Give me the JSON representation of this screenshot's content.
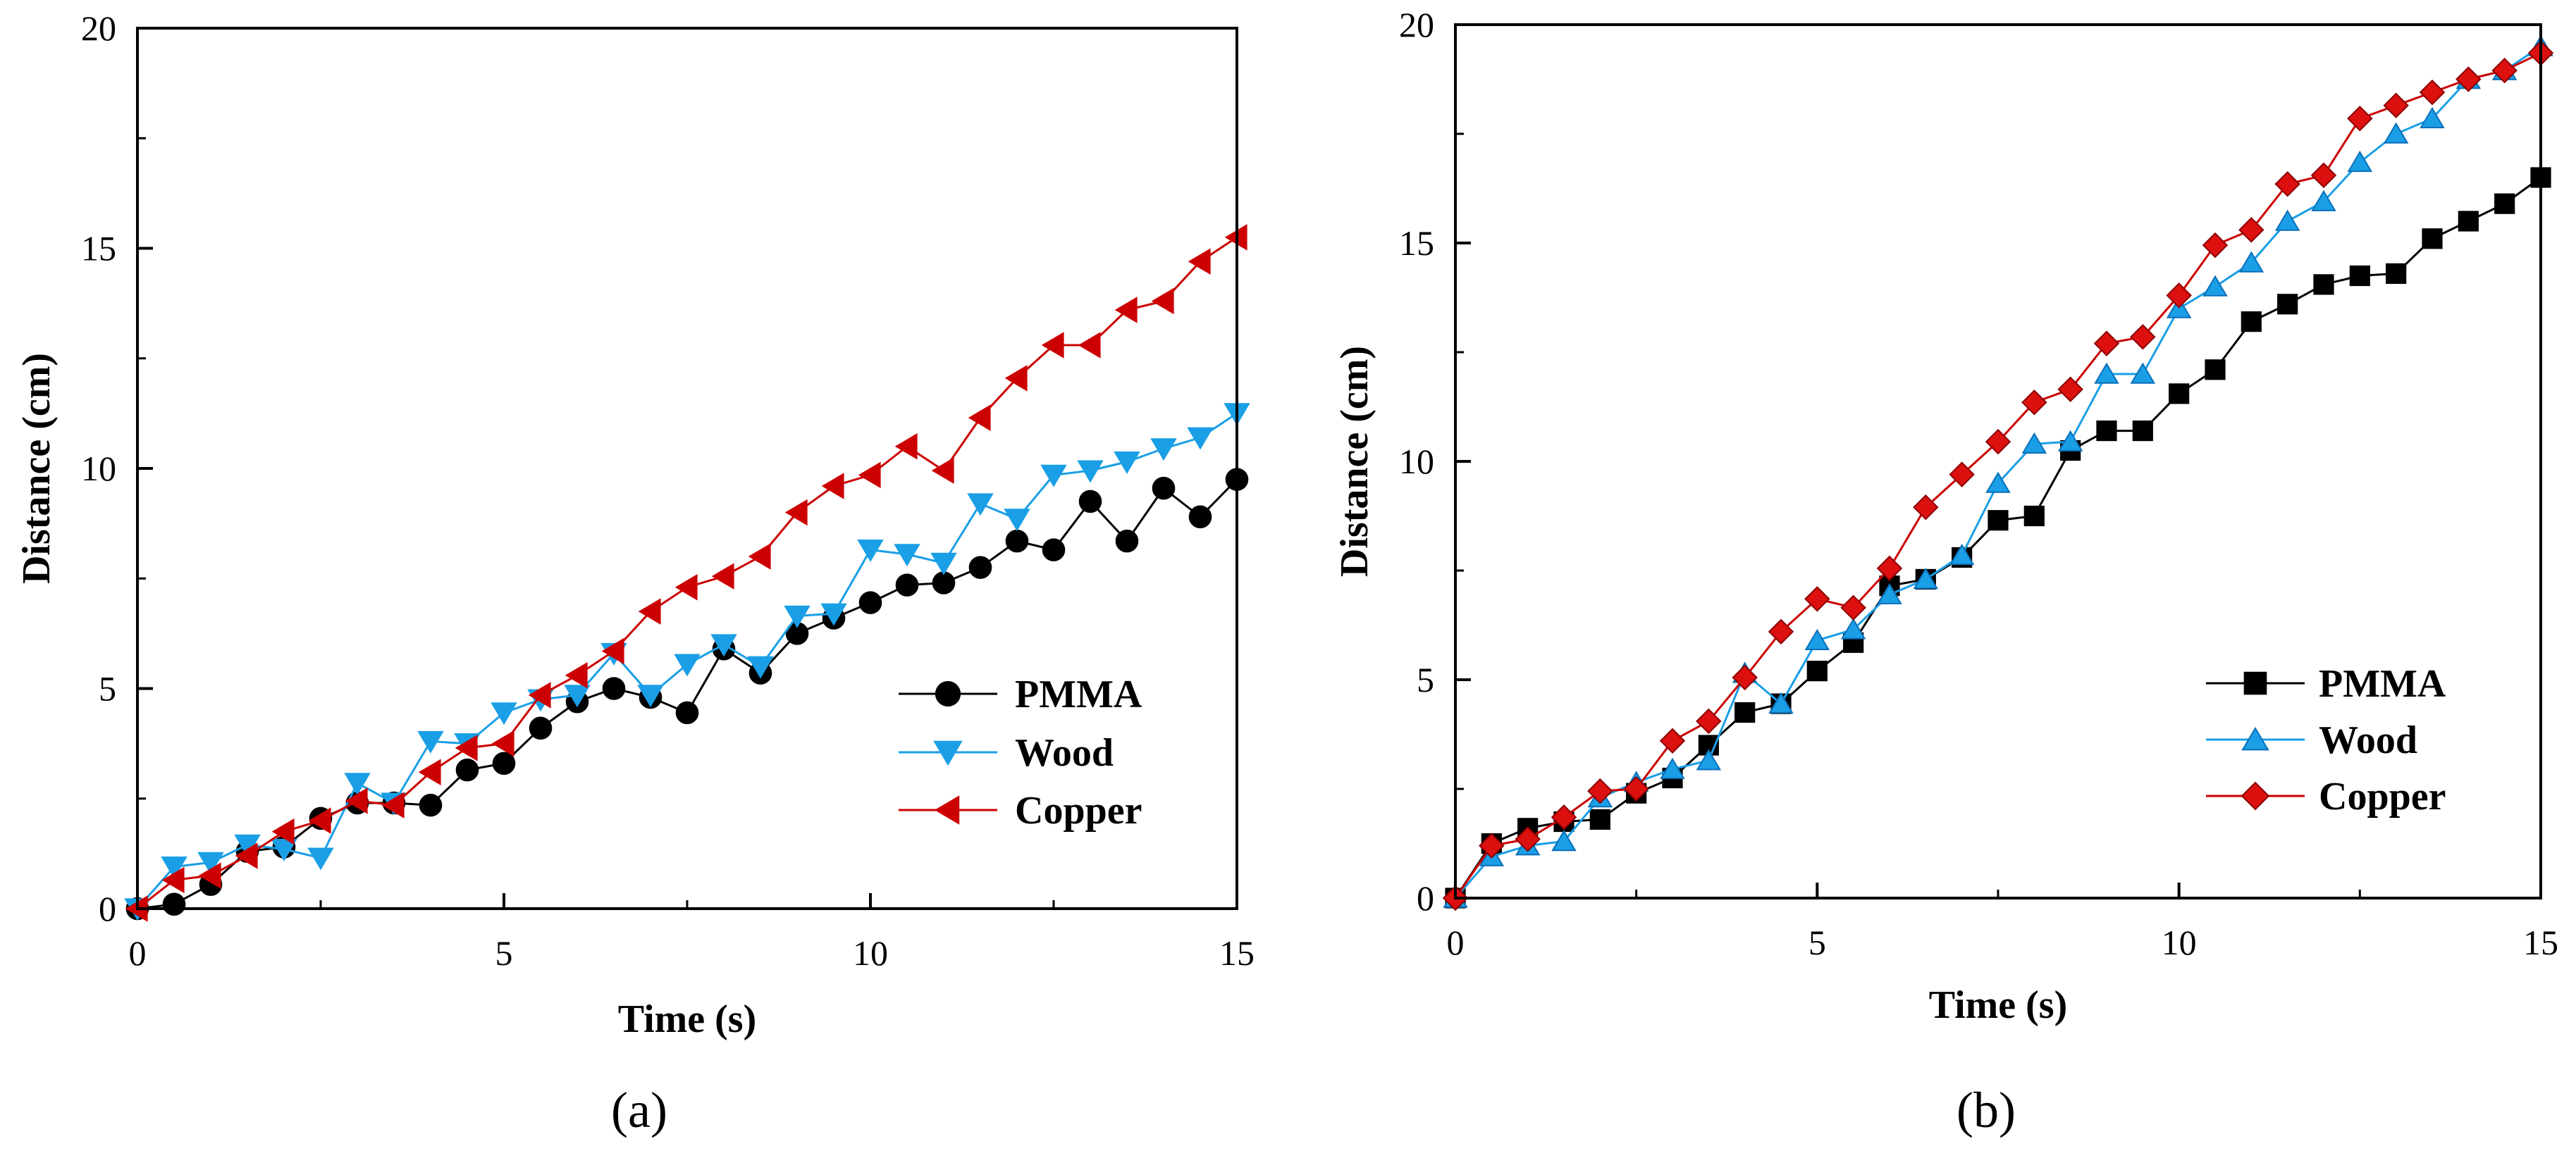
{
  "colors": {
    "PMMA": "#000000",
    "Wood": "#1a9fe6",
    "Copper": "#cc0000",
    "Copper_fill_b": "#dd1010"
  },
  "chart_data": [
    {
      "panel_label": "(a)",
      "type": "line",
      "xlabel": "Time (s)",
      "ylabel": "Distance (cm)",
      "xlim": [
        0,
        15
      ],
      "ylim": [
        0,
        20
      ],
      "xticks": [
        "0",
        "5",
        "10",
        "15"
      ],
      "yticks": [
        "0",
        "5",
        "10",
        "15",
        "20"
      ],
      "grid": false,
      "legend_position": "bottom-right",
      "x": [
        0,
        0.5,
        1,
        1.5,
        2,
        2.5,
        3,
        3.5,
        4,
        4.5,
        5,
        5.5,
        6,
        6.5,
        7,
        7.5,
        8,
        8.5,
        9,
        9.5,
        10,
        10.5,
        11,
        11.5,
        12,
        12.5,
        13,
        13.5,
        14,
        14.5,
        15
      ],
      "series": [
        {
          "name": "PMMA",
          "marker": "circle",
          "values": [
            0,
            0.1,
            0.55,
            1.3,
            1.4,
            2.05,
            2.4,
            2.4,
            2.35,
            3.15,
            3.3,
            4.1,
            4.7,
            5.0,
            4.8,
            4.45,
            5.9,
            5.35,
            6.25,
            6.6,
            6.95,
            7.35,
            7.4,
            7.75,
            8.35,
            8.15,
            9.25,
            8.35,
            9.55,
            8.9,
            9.75
          ]
        },
        {
          "name": "Wood",
          "marker": "triangle-down",
          "values": [
            0,
            0.95,
            1.05,
            1.45,
            1.35,
            1.15,
            2.85,
            2.4,
            3.8,
            3.75,
            4.45,
            4.75,
            4.85,
            5.8,
            4.85,
            5.55,
            6.0,
            5.5,
            6.65,
            6.7,
            8.15,
            8.05,
            7.85,
            9.2,
            8.85,
            9.85,
            9.95,
            10.15,
            10.45,
            10.7,
            11.25
          ]
        },
        {
          "name": "Copper",
          "marker": "triangle-left",
          "values": [
            0,
            0.65,
            0.75,
            1.2,
            1.75,
            2.0,
            2.45,
            2.35,
            3.1,
            3.65,
            3.75,
            4.85,
            5.3,
            5.85,
            6.75,
            7.3,
            7.55,
            8.0,
            9.0,
            9.6,
            9.85,
            10.5,
            9.95,
            11.15,
            12.05,
            12.8,
            12.8,
            13.6,
            13.8,
            14.7,
            15.25
          ]
        }
      ]
    },
    {
      "panel_label": "(b)",
      "type": "line",
      "xlabel": "Time (s)",
      "ylabel": "Distance (cm)",
      "xlim": [
        0,
        15
      ],
      "ylim": [
        0,
        20
      ],
      "xticks": [
        "0",
        "5",
        "10",
        "15"
      ],
      "yticks": [
        "0",
        "5",
        "10",
        "15",
        "20"
      ],
      "grid": false,
      "legend_position": "bottom-right",
      "x": [
        0,
        0.5,
        1,
        1.5,
        2,
        2.5,
        3,
        3.5,
        4,
        4.5,
        5,
        5.5,
        6,
        6.5,
        7,
        7.5,
        8,
        8.5,
        9,
        9.5,
        10,
        10.5,
        11,
        11.5,
        12,
        12.5,
        13,
        13.5,
        14,
        14.5,
        15
      ],
      "series": [
        {
          "name": "PMMA",
          "marker": "square",
          "values": [
            0,
            1.25,
            1.6,
            1.75,
            1.8,
            2.4,
            2.75,
            3.5,
            4.25,
            4.45,
            5.2,
            5.85,
            7.15,
            7.3,
            7.8,
            8.65,
            8.75,
            10.25,
            10.7,
            10.7,
            11.55,
            12.1,
            13.2,
            13.6,
            14.05,
            14.25,
            14.3,
            15.1,
            15.5,
            15.9,
            16.5
          ]
        },
        {
          "name": "Wood",
          "marker": "triangle-up",
          "values": [
            0,
            0.95,
            1.2,
            1.3,
            2.3,
            2.65,
            2.95,
            3.15,
            5.15,
            4.45,
            5.9,
            6.15,
            6.95,
            7.3,
            7.85,
            9.5,
            10.4,
            10.45,
            12.0,
            12.0,
            13.5,
            14.0,
            14.55,
            15.5,
            15.95,
            16.85,
            17.5,
            17.85,
            18.75,
            18.95,
            19.5
          ]
        },
        {
          "name": "Copper",
          "marker": "diamond",
          "values": [
            0,
            1.2,
            1.35,
            1.85,
            2.45,
            2.5,
            3.6,
            4.05,
            5.05,
            6.1,
            6.85,
            6.65,
            7.55,
            8.95,
            9.7,
            10.45,
            11.35,
            11.65,
            12.7,
            12.85,
            13.8,
            14.95,
            15.3,
            16.35,
            16.55,
            17.85,
            18.15,
            18.45,
            18.75,
            18.95,
            19.35
          ]
        }
      ]
    }
  ]
}
